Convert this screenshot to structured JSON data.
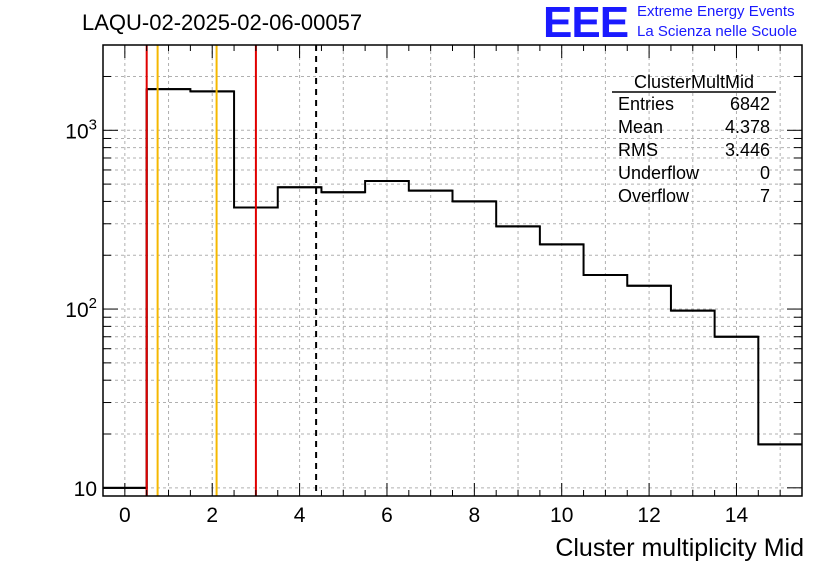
{
  "title": "LAQU-02-2025-02-06-00057",
  "logo": {
    "mark": "EEE",
    "line1": "Extreme Energy Events",
    "line2": "La Scienza nelle Scuole",
    "color": "#1a1aff"
  },
  "stats": {
    "name": "ClusterMultMid",
    "rows": [
      {
        "label": "Entries",
        "value": "6842"
      },
      {
        "label": "Mean",
        "value": "4.378"
      },
      {
        "label": "RMS",
        "value": "3.446"
      },
      {
        "label": "Underflow",
        "value": "0"
      },
      {
        "label": "Overflow",
        "value": "7"
      }
    ]
  },
  "chart_data": {
    "type": "histogram",
    "title": "LAQU-02-2025-02-06-00057",
    "xlabel": "Cluster multiplicity Mid",
    "ylabel": "",
    "xlim": [
      -0.5,
      15.5
    ],
    "ylim": [
      9,
      3000
    ],
    "yscale": "log",
    "grid": true,
    "bin_edges": [
      -0.5,
      0.5,
      1.5,
      2.5,
      3.5,
      4.5,
      5.5,
      6.5,
      7.5,
      8.5,
      9.5,
      10.5,
      11.5,
      12.5,
      13.5,
      14.5,
      15.5
    ],
    "counts": [
      10,
      1700,
      1650,
      370,
      480,
      450,
      520,
      460,
      400,
      290,
      230,
      155,
      135,
      98,
      70,
      17.5
    ],
    "x_ticks": [
      0,
      2,
      4,
      6,
      8,
      10,
      12,
      14
    ],
    "y_ticks": [
      {
        "value": 10,
        "label": "10"
      },
      {
        "value": 100,
        "label": "10^2"
      },
      {
        "value": 1000,
        "label": "10^3"
      }
    ],
    "vertical_lines": [
      {
        "x": 0.5,
        "color": "#e00000",
        "style": "solid"
      },
      {
        "x": 0.75,
        "color": "#f5b800",
        "style": "solid"
      },
      {
        "x": 2.1,
        "color": "#f5b800",
        "style": "solid"
      },
      {
        "x": 3.0,
        "color": "#e00000",
        "style": "solid"
      },
      {
        "x": 4.378,
        "color": "#000000",
        "style": "dashed"
      }
    ]
  }
}
